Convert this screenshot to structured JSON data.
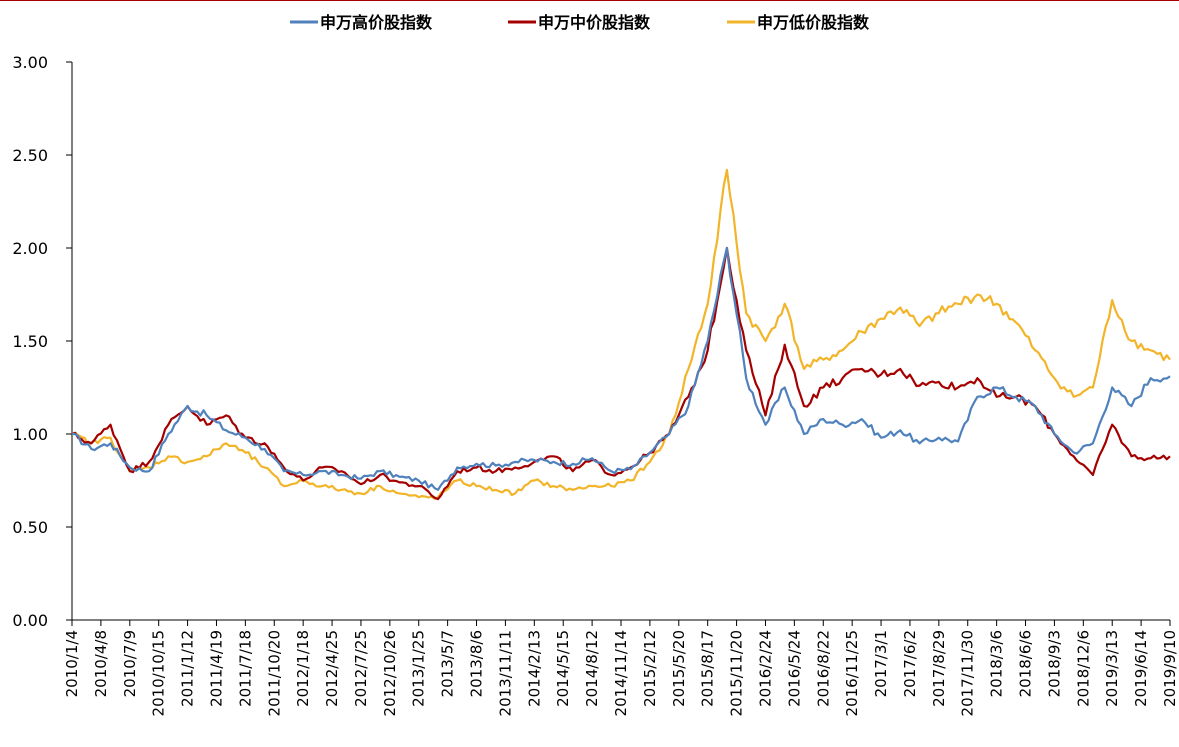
{
  "chart_data": {
    "type": "line",
    "title": "",
    "xlabel": "",
    "ylabel": "",
    "ylim": [
      0,
      3
    ],
    "y_ticks": [
      "0.00",
      "0.50",
      "1.00",
      "1.50",
      "2.00",
      "2.50",
      "3.00"
    ],
    "x_ticks": [
      "2010/1/4",
      "2010/4/8",
      "2010/7/9",
      "2010/10/15",
      "2011/1/12",
      "2011/4/19",
      "2011/7/18",
      "2011/10/20",
      "2012/1/18",
      "2012/4/25",
      "2012/7/25",
      "2012/10/26",
      "2013/1/25",
      "2013/5/7",
      "2013/8/6",
      "2013/11/11",
      "2014/2/13",
      "2014/5/15",
      "2014/8/12",
      "2014/11/14",
      "2015/2/12",
      "2015/5/20",
      "2015/8/17",
      "2015/11/20",
      "2016/2/24",
      "2016/5/24",
      "2016/8/22",
      "2016/11/25",
      "2017/3/1",
      "2017/6/2",
      "2017/8/29",
      "2017/11/30",
      "2018/3/6",
      "2018/6/6",
      "2018/9/3",
      "2018/12/6",
      "2019/3/13",
      "2019/6/14",
      "2019/9/10"
    ],
    "legend_position": "top",
    "grid": false,
    "series": [
      {
        "name": "申万高价股指数",
        "color": "#4F81BD",
        "values": [
          1.0,
          0.92,
          0.95,
          0.82,
          0.8,
          1.0,
          1.15,
          1.1,
          1.02,
          0.98,
          0.92,
          0.8,
          0.78,
          0.8,
          0.78,
          0.76,
          0.8,
          0.77,
          0.75,
          0.7,
          0.82,
          0.84,
          0.83,
          0.85,
          0.86,
          0.85,
          0.84,
          0.87,
          0.8,
          0.81,
          0.9,
          1.0,
          1.15,
          1.5,
          2.0,
          1.3,
          1.05,
          1.25,
          1.0,
          1.08,
          1.05,
          1.08,
          0.98,
          1.02,
          0.95,
          0.98,
          0.96,
          1.2,
          1.25,
          1.2,
          1.15,
          1.0,
          0.9,
          0.95,
          1.25,
          1.15,
          1.3,
          1.31
        ]
      },
      {
        "name": "申万中价股指数",
        "color": "#A50000",
        "values": [
          1.0,
          0.95,
          1.05,
          0.8,
          0.85,
          1.05,
          1.15,
          1.05,
          1.1,
          0.98,
          0.95,
          0.82,
          0.75,
          0.82,
          0.8,
          0.73,
          0.78,
          0.74,
          0.72,
          0.65,
          0.8,
          0.82,
          0.8,
          0.82,
          0.85,
          0.88,
          0.8,
          0.86,
          0.78,
          0.82,
          0.9,
          1.0,
          1.2,
          1.45,
          2.0,
          1.45,
          1.1,
          1.48,
          1.15,
          1.25,
          1.3,
          1.35,
          1.32,
          1.35,
          1.26,
          1.28,
          1.25,
          1.3,
          1.2,
          1.2,
          1.15,
          1.0,
          0.88,
          0.78,
          1.05,
          0.88,
          0.87,
          0.88
        ]
      },
      {
        "name": "申万低价股指数",
        "color": "#F2B52A",
        "values": [
          1.0,
          0.95,
          0.98,
          0.8,
          0.82,
          0.88,
          0.85,
          0.88,
          0.95,
          0.9,
          0.82,
          0.72,
          0.75,
          0.72,
          0.7,
          0.68,
          0.72,
          0.68,
          0.66,
          0.66,
          0.75,
          0.72,
          0.7,
          0.68,
          0.75,
          0.72,
          0.7,
          0.72,
          0.72,
          0.75,
          0.85,
          1.0,
          1.35,
          1.7,
          2.42,
          1.65,
          1.5,
          1.7,
          1.35,
          1.4,
          1.45,
          1.55,
          1.62,
          1.68,
          1.58,
          1.65,
          1.7,
          1.75,
          1.7,
          1.6,
          1.45,
          1.3,
          1.2,
          1.25,
          1.72,
          1.5,
          1.45,
          1.4
        ]
      }
    ]
  }
}
